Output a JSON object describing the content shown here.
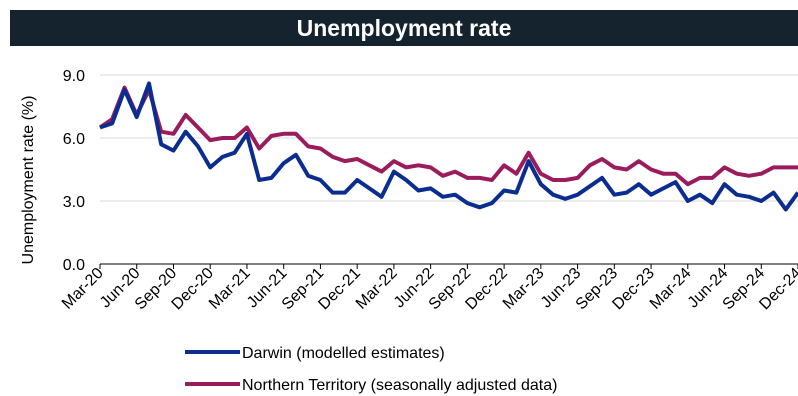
{
  "chart_data": {
    "type": "line",
    "title": "Unemployment rate",
    "ylabel": "Unemployment rate (%)",
    "ylim": [
      0,
      9
    ],
    "yticks": [
      "0.0",
      "3.0",
      "6.0",
      "9.0"
    ],
    "xticks": [
      "Mar-20",
      "Jun-20",
      "Sep-20",
      "Dec-20",
      "Mar-21",
      "Jun-21",
      "Sep-21",
      "Dec-21",
      "Mar-22",
      "Jun-22",
      "Sep-22",
      "Dec-22",
      "Mar-23",
      "Jun-23",
      "Sep-23",
      "Dec-23",
      "Mar-24",
      "Jun-24",
      "Sep-24",
      "Dec-24"
    ],
    "x_start": "Mar-20",
    "x_end": "Dec-24",
    "series": [
      {
        "name": "Darwin (modelled estimates)",
        "color": "#0a2d8f",
        "values": [
          6.5,
          6.7,
          8.3,
          7.0,
          8.6,
          5.7,
          5.4,
          6.3,
          5.6,
          4.6,
          5.1,
          5.3,
          6.2,
          4.0,
          4.1,
          4.8,
          5.2,
          4.2,
          4.0,
          3.4,
          3.4,
          4.0,
          3.6,
          3.2,
          4.4,
          4.0,
          3.5,
          3.6,
          3.2,
          3.3,
          2.9,
          2.7,
          2.9,
          3.5,
          3.4,
          4.9,
          3.8,
          3.3,
          3.1,
          3.3,
          3.7,
          4.1,
          3.3,
          3.4,
          3.8,
          3.3,
          3.6,
          3.9,
          3.0,
          3.3,
          2.9,
          3.8,
          3.3,
          3.2,
          3.0,
          3.4,
          2.6,
          3.4
        ]
      },
      {
        "name": "Northern Territory (seasonally adjusted data)",
        "color": "#9b1c5c",
        "values": [
          6.5,
          6.9,
          8.4,
          7.1,
          8.3,
          6.3,
          6.2,
          7.1,
          6.5,
          5.9,
          6.0,
          6.0,
          6.5,
          5.5,
          6.1,
          6.2,
          6.2,
          5.6,
          5.5,
          5.1,
          4.9,
          5.0,
          4.7,
          4.4,
          4.9,
          4.6,
          4.7,
          4.6,
          4.2,
          4.4,
          4.1,
          4.1,
          4.0,
          4.7,
          4.3,
          5.3,
          4.3,
          4.0,
          4.0,
          4.1,
          4.7,
          5.0,
          4.6,
          4.5,
          4.9,
          4.5,
          4.3,
          4.3,
          3.8,
          4.1,
          4.1,
          4.6,
          4.3,
          4.2,
          4.3,
          4.6,
          4.6,
          4.6
        ]
      }
    ],
    "legend_position": "bottom"
  }
}
